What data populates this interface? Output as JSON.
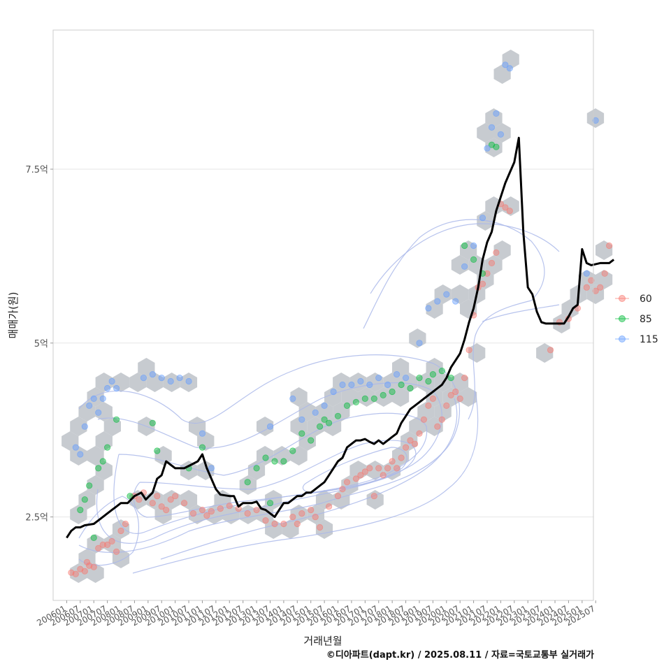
{
  "chart_data": {
    "type": "scatter",
    "xlabel": "거래년월",
    "ylabel": "매매가(원)",
    "caption": "©디아파트(dapt.kr) / 2025.08.11 / 자료=국토교통부 실거래가",
    "y_ticks": [
      {
        "label": "2.5억",
        "value": 2.5
      },
      {
        "label": "5억",
        "value": 5.0
      },
      {
        "label": "7.5억",
        "value": 7.5
      }
    ],
    "ylim": [
      1.3,
      9.5
    ],
    "x_ticks": [
      "200601",
      "200607",
      "200701",
      "200707",
      "200801",
      "200807",
      "200901",
      "200907",
      "201001",
      "201007",
      "201101",
      "201107",
      "201201",
      "201207",
      "201301",
      "201307",
      "201401",
      "201407",
      "201501",
      "201507",
      "201601",
      "201607",
      "201701",
      "201707",
      "201801",
      "201807",
      "201901",
      "201907",
      "202001",
      "202007",
      "202101",
      "202107",
      "202201",
      "202207",
      "202301",
      "202307",
      "202401",
      "202407",
      "202501",
      "202507"
    ],
    "xlim_months": [
      -6,
      233
    ],
    "grid": true,
    "legend": {
      "placement": "right",
      "entries": [
        {
          "label": "60",
          "color": "#F8766D"
        },
        {
          "label": "85",
          "color": "#00BA38"
        },
        {
          "label": "115",
          "color": "#619CFF"
        }
      ]
    },
    "trend_line": {
      "color": "#000000",
      "points": [
        [
          0,
          2.2
        ],
        [
          2,
          2.3
        ],
        [
          4,
          2.35
        ],
        [
          6,
          2.35
        ],
        [
          8,
          2.38
        ],
        [
          12,
          2.4
        ],
        [
          14,
          2.45
        ],
        [
          16,
          2.5
        ],
        [
          18,
          2.55
        ],
        [
          20,
          2.6
        ],
        [
          22,
          2.65
        ],
        [
          24,
          2.7
        ],
        [
          27,
          2.7
        ],
        [
          30,
          2.8
        ],
        [
          33,
          2.85
        ],
        [
          35,
          2.75
        ],
        [
          38,
          2.85
        ],
        [
          40,
          3.05
        ],
        [
          42,
          3.1
        ],
        [
          44,
          3.3
        ],
        [
          46,
          3.25
        ],
        [
          48,
          3.2
        ],
        [
          52,
          3.2
        ],
        [
          55,
          3.25
        ],
        [
          58,
          3.3
        ],
        [
          60,
          3.4
        ],
        [
          62,
          3.2
        ],
        [
          64,
          3.05
        ],
        [
          66,
          2.9
        ],
        [
          68,
          2.82
        ],
        [
          72,
          2.8
        ],
        [
          74,
          2.8
        ],
        [
          76,
          2.65
        ],
        [
          78,
          2.7
        ],
        [
          82,
          2.7
        ],
        [
          84,
          2.72
        ],
        [
          86,
          2.62
        ],
        [
          88,
          2.6
        ],
        [
          90,
          2.55
        ],
        [
          92,
          2.5
        ],
        [
          94,
          2.6
        ],
        [
          96,
          2.7
        ],
        [
          98,
          2.7
        ],
        [
          100,
          2.75
        ],
        [
          102,
          2.8
        ],
        [
          104,
          2.8
        ],
        [
          106,
          2.85
        ],
        [
          108,
          2.85
        ],
        [
          110,
          2.9
        ],
        [
          112,
          2.95
        ],
        [
          114,
          3.0
        ],
        [
          116,
          3.1
        ],
        [
          118,
          3.2
        ],
        [
          120,
          3.3
        ],
        [
          122,
          3.35
        ],
        [
          124,
          3.5
        ],
        [
          126,
          3.55
        ],
        [
          128,
          3.6
        ],
        [
          130,
          3.6
        ],
        [
          132,
          3.62
        ],
        [
          134,
          3.58
        ],
        [
          136,
          3.55
        ],
        [
          138,
          3.6
        ],
        [
          140,
          3.55
        ],
        [
          142,
          3.6
        ],
        [
          144,
          3.65
        ],
        [
          146,
          3.7
        ],
        [
          148,
          3.85
        ],
        [
          150,
          3.95
        ],
        [
          152,
          4.05
        ],
        [
          154,
          4.1
        ],
        [
          156,
          4.15
        ],
        [
          158,
          4.2
        ],
        [
          160,
          4.25
        ],
        [
          162,
          4.3
        ],
        [
          164,
          4.35
        ],
        [
          166,
          4.4
        ],
        [
          168,
          4.5
        ],
        [
          170,
          4.65
        ],
        [
          172,
          4.75
        ],
        [
          174,
          4.85
        ],
        [
          176,
          5.05
        ],
        [
          178,
          5.3
        ],
        [
          180,
          5.5
        ],
        [
          182,
          5.8
        ],
        [
          184,
          6.2
        ],
        [
          186,
          6.45
        ],
        [
          188,
          6.6
        ],
        [
          190,
          6.9
        ],
        [
          192,
          7.1
        ],
        [
          194,
          7.3
        ],
        [
          196,
          7.45
        ],
        [
          198,
          7.6
        ],
        [
          200,
          7.95
        ],
        [
          202,
          6.6
        ],
        [
          204,
          5.8
        ],
        [
          206,
          5.7
        ],
        [
          208,
          5.45
        ],
        [
          210,
          5.3
        ],
        [
          212,
          5.28
        ],
        [
          216,
          5.28
        ],
        [
          220,
          5.28
        ],
        [
          222,
          5.38
        ],
        [
          224,
          5.5
        ],
        [
          226,
          5.55
        ],
        [
          228,
          6.35
        ],
        [
          230,
          6.15
        ],
        [
          232,
          6.12
        ],
        [
          236,
          6.15
        ],
        [
          240,
          6.15
        ],
        [
          242,
          6.2
        ]
      ]
    },
    "series": [
      {
        "name": "60",
        "points": [
          [
            2,
            1.7
          ],
          [
            4,
            1.68
          ],
          [
            6,
            1.75
          ],
          [
            8,
            1.72
          ],
          [
            9,
            1.85
          ],
          [
            10,
            1.8
          ],
          [
            12,
            1.78
          ],
          [
            14,
            2.05
          ],
          [
            16,
            2.1
          ],
          [
            18,
            2.1
          ],
          [
            20,
            2.15
          ],
          [
            22,
            2.0
          ],
          [
            24,
            2.3
          ],
          [
            26,
            2.4
          ],
          [
            30,
            2.8
          ],
          [
            32,
            2.75
          ],
          [
            34,
            2.85
          ],
          [
            38,
            2.7
          ],
          [
            40,
            2.8
          ],
          [
            42,
            2.65
          ],
          [
            44,
            2.6
          ],
          [
            46,
            2.75
          ],
          [
            48,
            2.8
          ],
          [
            52,
            2.7
          ],
          [
            56,
            2.55
          ],
          [
            60,
            2.6
          ],
          [
            62,
            2.52
          ],
          [
            64,
            2.58
          ],
          [
            68,
            2.62
          ],
          [
            72,
            2.66
          ],
          [
            76,
            2.62
          ],
          [
            80,
            2.55
          ],
          [
            84,
            2.6
          ],
          [
            88,
            2.45
          ],
          [
            92,
            2.4
          ],
          [
            96,
            2.4
          ],
          [
            100,
            2.5
          ],
          [
            102,
            2.4
          ],
          [
            104,
            2.55
          ],
          [
            108,
            2.6
          ],
          [
            110,
            2.5
          ],
          [
            112,
            2.35
          ],
          [
            116,
            2.65
          ],
          [
            120,
            2.8
          ],
          [
            122,
            2.9
          ],
          [
            124,
            3.0
          ],
          [
            128,
            3.05
          ],
          [
            130,
            3.1
          ],
          [
            132,
            3.15
          ],
          [
            134,
            3.2
          ],
          [
            136,
            2.8
          ],
          [
            138,
            3.2
          ],
          [
            140,
            3.1
          ],
          [
            142,
            3.2
          ],
          [
            144,
            3.3
          ],
          [
            146,
            3.2
          ],
          [
            148,
            3.35
          ],
          [
            150,
            3.5
          ],
          [
            152,
            3.6
          ],
          [
            154,
            3.55
          ],
          [
            156,
            3.7
          ],
          [
            158,
            3.9
          ],
          [
            160,
            4.1
          ],
          [
            162,
            4.2
          ],
          [
            164,
            3.8
          ],
          [
            166,
            3.9
          ],
          [
            168,
            4.1
          ],
          [
            170,
            4.25
          ],
          [
            172,
            4.3
          ],
          [
            174,
            4.2
          ],
          [
            176,
            4.5
          ],
          [
            178,
            4.9
          ],
          [
            180,
            5.4
          ],
          [
            182,
            5.8
          ],
          [
            184,
            5.85
          ],
          [
            186,
            6.0
          ],
          [
            188,
            6.15
          ],
          [
            190,
            6.3
          ],
          [
            192,
            7.0
          ],
          [
            194,
            6.95
          ],
          [
            196,
            6.9
          ],
          [
            214,
            4.9
          ],
          [
            218,
            5.3
          ],
          [
            222,
            5.35
          ],
          [
            226,
            5.5
          ],
          [
            230,
            5.8
          ],
          [
            232,
            5.9
          ],
          [
            234,
            5.75
          ],
          [
            236,
            5.8
          ],
          [
            238,
            6.0
          ],
          [
            240,
            6.4
          ]
        ]
      },
      {
        "name": "85",
        "points": [
          [
            6,
            2.6
          ],
          [
            8,
            2.75
          ],
          [
            10,
            2.95
          ],
          [
            12,
            2.2
          ],
          [
            14,
            3.2
          ],
          [
            16,
            3.3
          ],
          [
            18,
            3.5
          ],
          [
            22,
            3.9
          ],
          [
            28,
            2.8
          ],
          [
            38,
            3.85
          ],
          [
            40,
            3.45
          ],
          [
            54,
            3.2
          ],
          [
            60,
            3.5
          ],
          [
            80,
            3.0
          ],
          [
            84,
            3.2
          ],
          [
            88,
            3.35
          ],
          [
            90,
            2.7
          ],
          [
            92,
            3.3
          ],
          [
            96,
            3.3
          ],
          [
            100,
            3.45
          ],
          [
            104,
            3.7
          ],
          [
            108,
            3.6
          ],
          [
            112,
            3.8
          ],
          [
            114,
            3.9
          ],
          [
            116,
            3.85
          ],
          [
            120,
            3.95
          ],
          [
            124,
            4.1
          ],
          [
            128,
            4.15
          ],
          [
            132,
            4.2
          ],
          [
            136,
            4.2
          ],
          [
            140,
            4.25
          ],
          [
            144,
            4.3
          ],
          [
            148,
            4.4
          ],
          [
            152,
            4.35
          ],
          [
            156,
            4.5
          ],
          [
            160,
            4.45
          ],
          [
            162,
            4.55
          ],
          [
            166,
            4.6
          ],
          [
            170,
            4.5
          ],
          [
            176,
            6.4
          ],
          [
            180,
            6.2
          ],
          [
            184,
            6.0
          ],
          [
            188,
            7.85
          ],
          [
            190,
            7.82
          ]
        ]
      },
      {
        "name": "115",
        "points": [
          [
            4,
            3.5
          ],
          [
            6,
            3.4
          ],
          [
            8,
            3.8
          ],
          [
            10,
            4.1
          ],
          [
            12,
            4.2
          ],
          [
            14,
            4.0
          ],
          [
            16,
            4.2
          ],
          [
            18,
            4.35
          ],
          [
            20,
            4.45
          ],
          [
            22,
            4.35
          ],
          [
            34,
            4.5
          ],
          [
            38,
            4.55
          ],
          [
            42,
            4.5
          ],
          [
            46,
            4.45
          ],
          [
            50,
            4.5
          ],
          [
            54,
            4.45
          ],
          [
            60,
            3.7
          ],
          [
            64,
            3.2
          ],
          [
            90,
            3.8
          ],
          [
            100,
            4.2
          ],
          [
            104,
            3.9
          ],
          [
            110,
            4.0
          ],
          [
            114,
            4.1
          ],
          [
            118,
            4.3
          ],
          [
            122,
            4.4
          ],
          [
            126,
            4.4
          ],
          [
            130,
            4.45
          ],
          [
            134,
            4.4
          ],
          [
            138,
            4.5
          ],
          [
            142,
            4.4
          ],
          [
            146,
            4.55
          ],
          [
            150,
            4.5
          ],
          [
            156,
            5.0
          ],
          [
            160,
            5.5
          ],
          [
            164,
            5.6
          ],
          [
            168,
            5.7
          ],
          [
            172,
            5.6
          ],
          [
            176,
            6.1
          ],
          [
            180,
            6.4
          ],
          [
            184,
            6.8
          ],
          [
            186,
            7.8
          ],
          [
            188,
            8.1
          ],
          [
            190,
            8.3
          ],
          [
            192,
            8.0
          ],
          [
            194,
            9.0
          ],
          [
            196,
            8.95
          ],
          [
            230,
            6.0
          ],
          [
            234,
            8.2
          ]
        ]
      }
    ]
  }
}
